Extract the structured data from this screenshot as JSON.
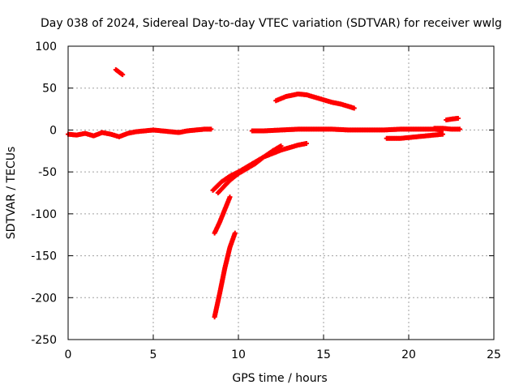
{
  "chart_data": {
    "type": "scatter",
    "title": "Day 038 of 2024, Sidereal Day-to-day VTEC variation (SDTVAR) for receiver wwlg",
    "xlabel": "GPS time / hours",
    "ylabel": "SDTVAR / TECUs",
    "xlim": [
      0,
      25
    ],
    "ylim": [
      -250,
      100
    ],
    "xticks": [
      0,
      5,
      10,
      15,
      20,
      25
    ],
    "yticks": [
      -250,
      -200,
      -150,
      -100,
      -50,
      0,
      50,
      100
    ],
    "xtick_labels": [
      "0",
      "5",
      "10",
      "15",
      "20",
      "25"
    ],
    "ytick_labels": [
      "-250",
      "-200",
      "-150",
      "-100",
      "-50",
      "0",
      "50",
      "100"
    ],
    "grid": true,
    "legend": "none",
    "marker_color": "#ff0000",
    "series": [
      {
        "x": [
          0.0,
          0.5,
          1.0,
          1.5,
          2.0,
          2.5,
          3.0,
          3.5,
          4.0,
          4.5,
          5.0,
          5.5,
          6.0,
          6.5,
          7.0,
          7.5,
          8.0,
          8.4
        ],
        "y": [
          -5,
          -6,
          -4,
          -7,
          -3,
          -5,
          -8,
          -4,
          -2,
          -1,
          0,
          -1,
          -2,
          -3,
          -1,
          0,
          1,
          1
        ]
      },
      {
        "x": [
          2.8,
          3.0,
          3.2
        ],
        "y": [
          72,
          69,
          66
        ]
      },
      {
        "x": [
          8.5,
          9.0,
          9.5,
          10.0,
          10.5,
          11.0,
          11.5,
          12.0,
          12.5,
          13.0,
          13.5,
          14.0
        ],
        "y": [
          -72,
          -62,
          -55,
          -50,
          -44,
          -38,
          -32,
          -28,
          -24,
          -21,
          -18,
          -16
        ]
      },
      {
        "x": [
          8.8,
          9.5,
          10.0,
          10.5,
          11.0,
          11.5,
          12.0,
          12.5
        ],
        "y": [
          -75,
          -60,
          -52,
          -46,
          -40,
          -32,
          -25,
          -19
        ]
      },
      {
        "x": [
          8.6,
          8.9,
          9.2,
          9.5
        ],
        "y": [
          -123,
          -110,
          -95,
          -80
        ]
      },
      {
        "x": [
          8.6,
          8.9,
          9.2,
          9.5,
          9.8
        ],
        "y": [
          -223,
          -195,
          -165,
          -140,
          -123
        ]
      },
      {
        "x": [
          12.2,
          12.8,
          13.5,
          14.0,
          14.5,
          15.0,
          15.5,
          16.0,
          16.5,
          16.8
        ],
        "y": [
          35,
          40,
          43,
          42,
          39,
          36,
          33,
          31,
          28,
          26
        ]
      },
      {
        "x": [
          10.8,
          11.5,
          12.5,
          13.5,
          14.5,
          15.5,
          16.5,
          17.5,
          18.5,
          19.5,
          20.5,
          21.5,
          22.0
        ],
        "y": [
          -1,
          -1,
          0,
          1,
          1,
          1,
          0,
          0,
          0,
          1,
          1,
          1,
          0
        ]
      },
      {
        "x": [
          18.7,
          19.5,
          20.5,
          21.5,
          22.0
        ],
        "y": [
          -10,
          -10,
          -8,
          -6,
          -5
        ]
      },
      {
        "x": [
          22.2,
          22.5,
          22.9
        ],
        "y": [
          12,
          13,
          14
        ]
      },
      {
        "x": [
          21.5,
          22.0,
          22.5,
          23.0
        ],
        "y": [
          2,
          2,
          1,
          1
        ]
      }
    ]
  }
}
